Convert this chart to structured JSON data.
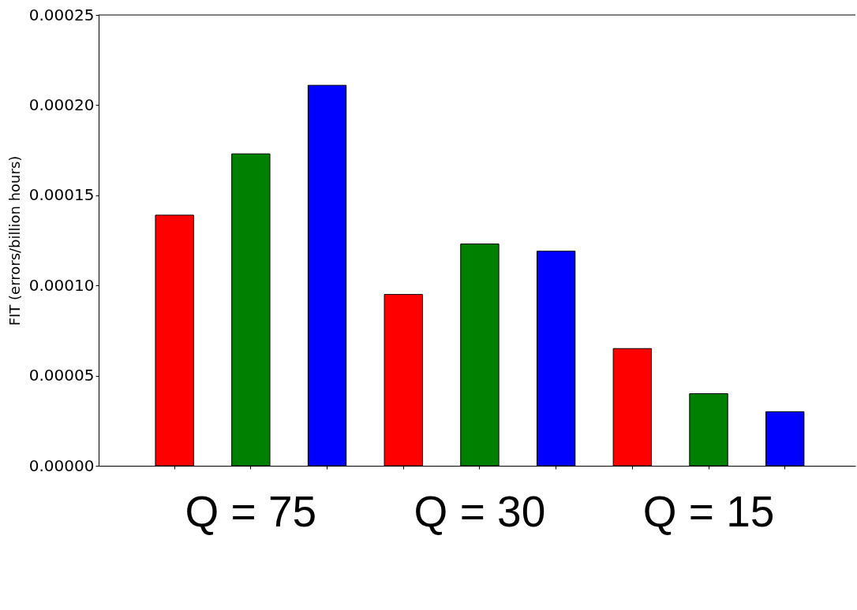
{
  "chart_data": {
    "type": "bar",
    "ylabel": "FIT (errors/billion hours)",
    "categories": [
      null,
      "Q = 75",
      null,
      null,
      "Q = 30",
      null,
      null,
      "Q = 15",
      null
    ],
    "values": [
      0.000139,
      0.000173,
      0.000211,
      9.5e-05,
      0.000123,
      0.000119,
      6.5e-05,
      4e-05,
      3e-05
    ],
    "colors": [
      "#ff0000",
      "#008000",
      "#0000ff",
      "#ff0000",
      "#008000",
      "#0000ff",
      "#ff0000",
      "#008000",
      "#0000ff"
    ],
    "ylim": [
      0,
      0.00025
    ],
    "yticks": [
      {
        "value": 0,
        "label": "0.00000"
      },
      {
        "value": 5e-05,
        "label": "0.00005"
      },
      {
        "value": 0.0001,
        "label": "0.00010"
      },
      {
        "value": 0.00015,
        "label": "0.00015"
      },
      {
        "value": 0.0002,
        "label": "0.00020"
      },
      {
        "value": 0.00025,
        "label": "0.00025"
      }
    ],
    "grid": false
  }
}
